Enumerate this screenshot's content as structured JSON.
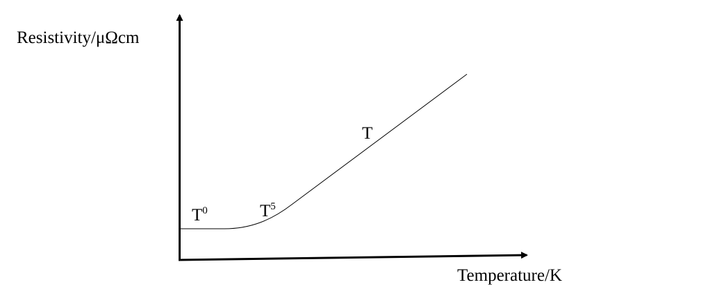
{
  "axes": {
    "y_label": "Resistivity/μΩcm",
    "x_label": "Temperature/K"
  },
  "annotations": [
    {
      "base": "T",
      "exponent": "0"
    },
    {
      "base": "T",
      "exponent": "5"
    },
    {
      "base": "T"
    }
  ]
}
